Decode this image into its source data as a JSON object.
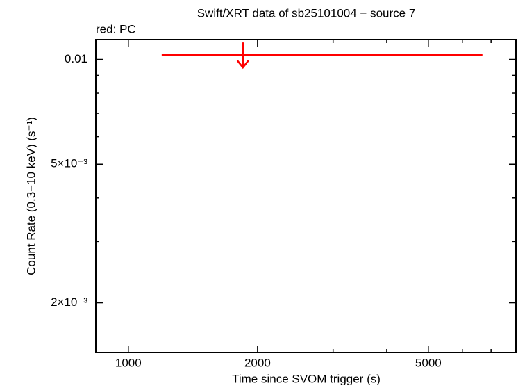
{
  "chart_data": {
    "type": "upper_limit",
    "title": "Swift/XRT data of sb25101004 − source 7",
    "subtitle": "red: PC",
    "x_label": "Time since SVOM trigger (s)",
    "y_label": "Count Rate (0.3−10 keV) (s⁻¹)",
    "log_x": true,
    "log_y": true,
    "xlim": [
      840,
      8000
    ],
    "ylim": [
      0.00144,
      0.0114
    ],
    "xticks": [
      1000,
      2000,
      5000
    ],
    "xminor": [
      3000,
      4000,
      6000,
      7000,
      8000
    ],
    "yticks": [
      {
        "value": 0.002,
        "label": "2×10⁻³"
      },
      {
        "value": 0.005,
        "label": "5×10⁻³"
      },
      0.01
    ],
    "yminor": [
      0.003,
      0.004,
      0.006,
      0.007,
      0.008,
      0.009
    ],
    "series": [
      {
        "name": "PC",
        "color": "#ff0000",
        "x": [
          1849
        ],
        "x_low": [
          1196
        ],
        "x_high": [
          6684
        ],
        "values": [
          0.0103
        ]
      }
    ]
  }
}
